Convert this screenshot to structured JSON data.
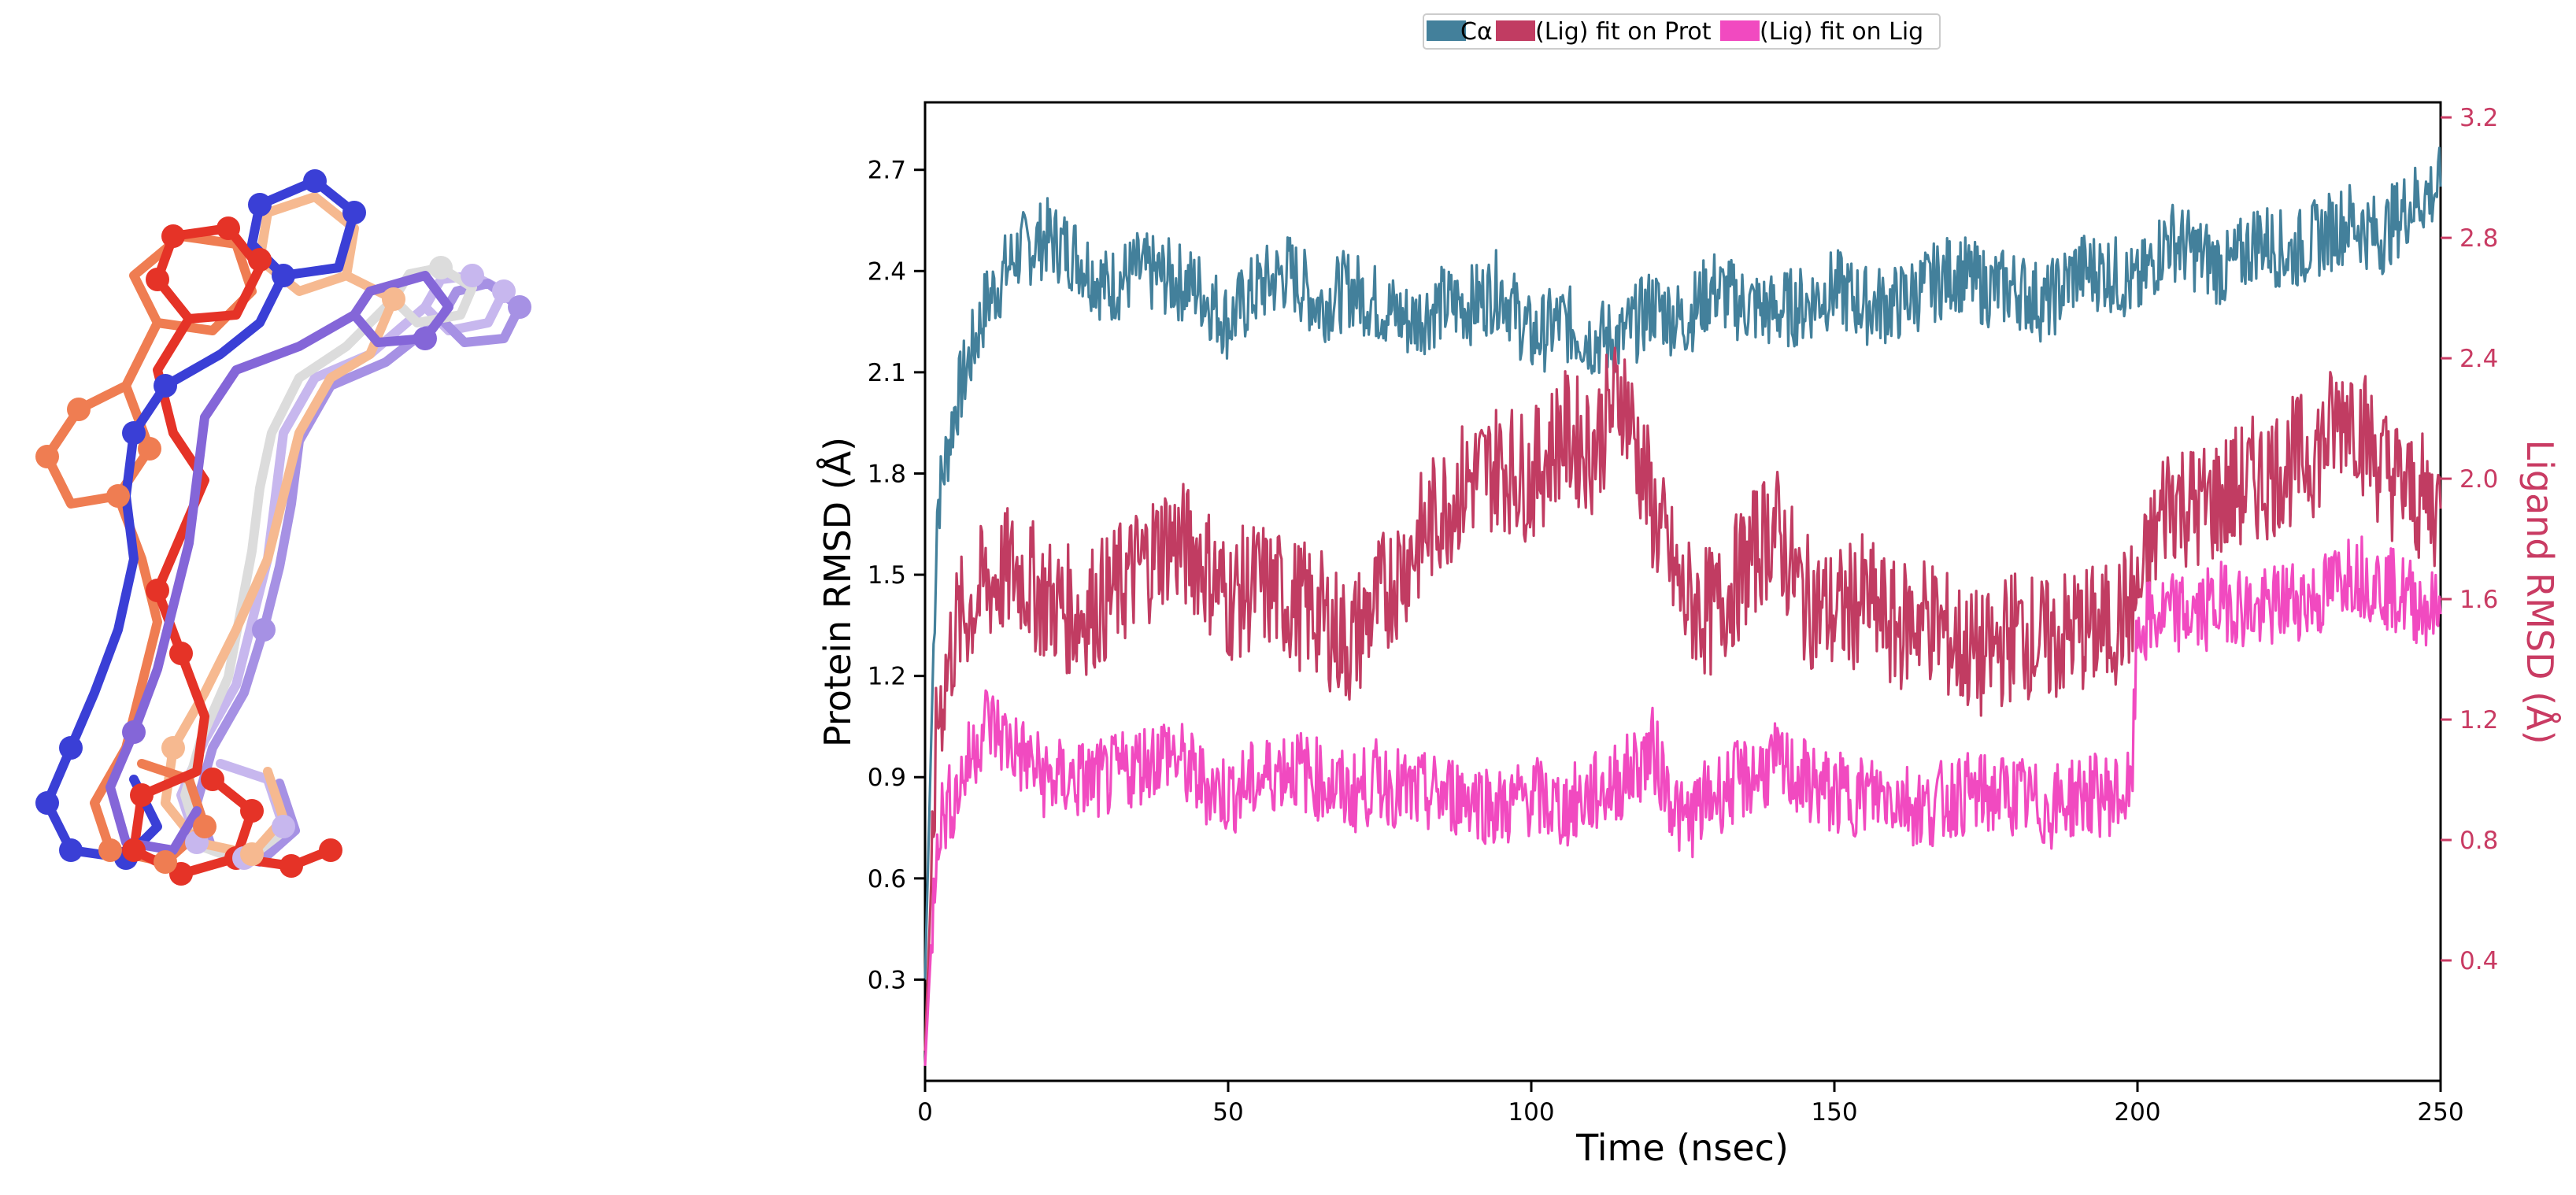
{
  "chart_data": {
    "type": "line",
    "xlabel": "Time (nsec)",
    "ylabel_left": "Protein RMSD (Å)",
    "ylabel_right": "Ligand RMSD (Å)",
    "xlim": [
      0,
      250
    ],
    "ylim_left": [
      0,
      2.9
    ],
    "ylim_right": [
      0,
      3.25
    ],
    "x_ticks": [
      0,
      50,
      100,
      150,
      200,
      250
    ],
    "y_ticks_left": [
      0.3,
      0.6,
      0.9,
      1.2,
      1.5,
      1.8,
      2.1,
      2.4,
      2.7
    ],
    "y_ticks_right": [
      0.4,
      0.8,
      1.2,
      1.6,
      2.0,
      2.4,
      2.8,
      3.2
    ],
    "legend": [
      "Cα",
      "(Lig) fit on Prot",
      "(Lig) fit on Lig"
    ],
    "legend_position": "top-center",
    "series": [
      {
        "name": "Cα",
        "axis": "left",
        "color": "#43809b",
        "x": [
          0,
          2,
          5,
          10,
          15,
          20,
          25,
          30,
          35,
          40,
          45,
          50,
          55,
          60,
          65,
          70,
          75,
          80,
          85,
          90,
          95,
          100,
          105,
          110,
          115,
          120,
          125,
          130,
          135,
          140,
          145,
          150,
          155,
          160,
          165,
          170,
          175,
          180,
          185,
          190,
          195,
          200,
          205,
          210,
          215,
          220,
          225,
          230,
          235,
          240,
          245,
          250
        ],
        "values": [
          0.3,
          1.7,
          2.0,
          2.3,
          2.45,
          2.5,
          2.45,
          2.35,
          2.4,
          2.38,
          2.35,
          2.25,
          2.35,
          2.4,
          2.3,
          2.35,
          2.3,
          2.25,
          2.3,
          2.3,
          2.35,
          2.2,
          2.25,
          2.2,
          2.2,
          2.3,
          2.25,
          2.35,
          2.3,
          2.28,
          2.3,
          2.35,
          2.3,
          2.3,
          2.35,
          2.4,
          2.35,
          2.35,
          2.3,
          2.4,
          2.4,
          2.35,
          2.5,
          2.45,
          2.4,
          2.5,
          2.45,
          2.5,
          2.55,
          2.5,
          2.6,
          2.65
        ]
      },
      {
        "name": "(Lig) fit on Prot",
        "axis": "right",
        "color": "#c13c62",
        "x": [
          0,
          2,
          5,
          10,
          15,
          20,
          25,
          30,
          35,
          40,
          45,
          50,
          55,
          60,
          65,
          70,
          75,
          80,
          85,
          90,
          95,
          100,
          105,
          110,
          115,
          120,
          125,
          130,
          135,
          140,
          145,
          150,
          155,
          160,
          165,
          170,
          175,
          180,
          185,
          190,
          195,
          200,
          205,
          210,
          215,
          220,
          225,
          230,
          235,
          240,
          245,
          250
        ],
        "values": [
          0.1,
          1.2,
          1.5,
          1.65,
          1.7,
          1.6,
          1.55,
          1.6,
          1.7,
          1.8,
          1.75,
          1.6,
          1.65,
          1.6,
          1.55,
          1.45,
          1.6,
          1.75,
          1.9,
          2.0,
          2.05,
          2.0,
          2.15,
          2.1,
          2.3,
          1.9,
          1.6,
          1.55,
          1.7,
          1.85,
          1.6,
          1.55,
          1.6,
          1.5,
          1.55,
          1.45,
          1.4,
          1.5,
          1.45,
          1.5,
          1.5,
          1.6,
          1.95,
          1.9,
          1.95,
          2.0,
          2.05,
          2.1,
          2.25,
          2.05,
          1.95,
          1.9
        ]
      },
      {
        "name": "(Lig) fit on Lig",
        "axis": "right",
        "color": "#f14ac0",
        "x": [
          0,
          2,
          5,
          10,
          15,
          20,
          25,
          30,
          35,
          40,
          45,
          50,
          55,
          60,
          65,
          70,
          75,
          80,
          85,
          90,
          95,
          100,
          105,
          110,
          115,
          120,
          125,
          130,
          135,
          140,
          145,
          150,
          155,
          160,
          165,
          170,
          175,
          180,
          185,
          190,
          195,
          199,
          200,
          205,
          210,
          215,
          220,
          225,
          230,
          235,
          240,
          245,
          250
        ],
        "values": [
          0.05,
          0.85,
          0.95,
          1.2,
          1.1,
          1.0,
          1.0,
          1.0,
          1.05,
          1.1,
          1.0,
          0.95,
          1.0,
          1.05,
          1.0,
          0.95,
          1.0,
          0.95,
          0.95,
          0.95,
          0.9,
          0.95,
          0.9,
          0.95,
          1.0,
          1.1,
          0.85,
          0.95,
          1.0,
          1.05,
          1.0,
          0.95,
          0.95,
          0.95,
          0.9,
          0.95,
          0.95,
          0.95,
          0.9,
          0.95,
          0.95,
          0.95,
          1.5,
          1.55,
          1.55,
          1.6,
          1.55,
          1.6,
          1.6,
          1.7,
          1.65,
          1.6,
          1.55
        ]
      }
    ]
  },
  "molecule_panel": {
    "description_icon": "ligand-pose-overlay-icon",
    "colors": [
      "#e8442f",
      "#f07e4e",
      "#f6b38c",
      "#4043d4",
      "#8a70d8",
      "#b8a8e8",
      "#e9e9e9"
    ]
  }
}
